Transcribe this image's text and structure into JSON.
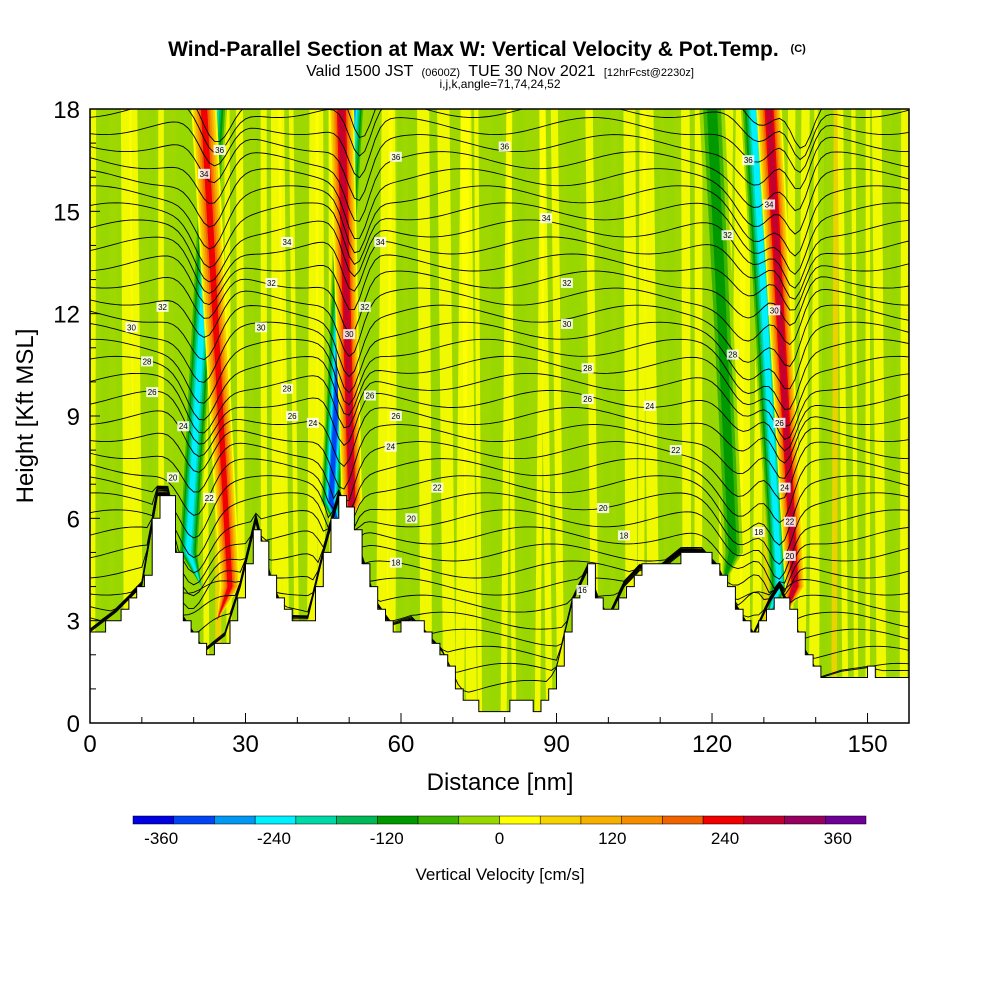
{
  "chart_data": {
    "type": "heatmap",
    "title": "Wind-Parallel Section at Max W: Vertical Velocity & Pot.Temp.",
    "title_suffix": "(C)",
    "subtitle": {
      "valid_prefix": "Valid 1500 JST",
      "utc": "(0600Z)",
      "date": "TUE 30 Nov 2021",
      "forecast": "[12hrFcst@2230z]"
    },
    "subtitle2": "i,j,k,angle=71,74,24,52",
    "xlabel": "Distance [nm]",
    "ylabel": "Height [Kft MSL]",
    "xlim": [
      0,
      158
    ],
    "ylim": [
      0,
      18
    ],
    "xticks": [
      "0",
      "30",
      "60",
      "90",
      "120",
      "150"
    ],
    "yticks": [
      "0",
      "3",
      "6",
      "9",
      "12",
      "15",
      "18"
    ],
    "colorbar": {
      "label": "Vertical Velocity [cm/s]",
      "range": [
        -390,
        390
      ],
      "tick_labels": [
        "-360",
        "-240",
        "-120",
        "0",
        "120",
        "240",
        "360"
      ],
      "tick_values": [
        -360,
        -240,
        -120,
        0,
        120,
        240,
        360
      ],
      "colors": [
        "#0000e0",
        "#0044f2",
        "#0098f2",
        "#00f0ff",
        "#00d8a8",
        "#00b858",
        "#009a00",
        "#3cb400",
        "#96d800",
        "#ffff00",
        "#f6d200",
        "#f8b000",
        "#f68c00",
        "#f06400",
        "#f00000",
        "#c00030",
        "#960060",
        "#6e0096"
      ]
    },
    "terrain_heights_kft": [
      [
        0,
        2.6
      ],
      [
        5,
        3.2
      ],
      [
        10,
        4
      ],
      [
        13,
        6.8
      ],
      [
        15,
        6.8
      ],
      [
        18,
        3
      ],
      [
        20,
        2.5
      ],
      [
        22,
        2
      ],
      [
        26,
        2.5
      ],
      [
        29,
        4
      ],
      [
        32,
        6
      ],
      [
        35,
        4
      ],
      [
        38,
        3
      ],
      [
        42,
        3
      ],
      [
        45,
        5
      ],
      [
        48,
        6.7
      ],
      [
        50,
        6
      ],
      [
        55,
        3.5
      ],
      [
        58,
        2.8
      ],
      [
        62,
        3
      ],
      [
        65,
        2.5
      ],
      [
        68,
        2
      ],
      [
        71,
        1
      ],
      [
        74,
        0.4
      ],
      [
        78,
        0.4
      ],
      [
        82,
        0.6
      ],
      [
        86,
        0.4
      ],
      [
        90,
        1.5
      ],
      [
        93,
        3.5
      ],
      [
        96,
        4.5
      ],
      [
        98,
        3.5
      ],
      [
        100,
        3
      ],
      [
        103,
        4
      ],
      [
        106,
        4.5
      ],
      [
        110,
        4.5
      ],
      [
        114,
        5
      ],
      [
        118,
        5
      ],
      [
        121,
        4.5
      ],
      [
        124,
        3.5
      ],
      [
        128,
        2.5
      ],
      [
        131,
        3.5
      ],
      [
        133,
        4
      ],
      [
        135,
        3.2
      ],
      [
        138,
        2
      ],
      [
        141,
        1.2
      ],
      [
        145,
        1.4
      ],
      [
        150,
        1.5
      ],
      [
        153,
        1.4
      ],
      [
        158,
        1.4
      ]
    ],
    "updraft_bands": [
      {
        "x_top": 22,
        "x_bottom": 27,
        "y_top": 18,
        "y_bottom": 4,
        "max_w": 270
      },
      {
        "x_top": 48.5,
        "x_bottom": 50.5,
        "y_top": 18,
        "y_bottom": 6.5,
        "max_w": 300
      },
      {
        "x_top": 131,
        "x_bottom": 136,
        "y_top": 18,
        "y_bottom": 4,
        "max_w": 300
      }
    ],
    "downdraft_bands": [
      {
        "x_top": 24,
        "x_bottom": 19,
        "y_top": 18,
        "y_bottom": 5,
        "min_w": -270
      },
      {
        "x_top": 50.5,
        "x_bottom": 46.5,
        "y_top": 18,
        "y_bottom": 6.5,
        "min_w": -360
      },
      {
        "x_top": 120,
        "x_bottom": 124,
        "y_top": 18,
        "y_bottom": 5,
        "min_w": -120
      },
      {
        "x_top": 128,
        "x_bottom": 133,
        "y_top": 18,
        "y_bottom": 4,
        "min_w": -270
      }
    ],
    "contour_labels": [
      {
        "text": "36",
        "x": 25,
        "y": 16.8
      },
      {
        "text": "34",
        "x": 22,
        "y": 16.1
      },
      {
        "text": "34",
        "x": 38,
        "y": 14.1
      },
      {
        "text": "32",
        "x": 35,
        "y": 12.9
      },
      {
        "text": "30",
        "x": 33,
        "y": 11.6
      },
      {
        "text": "28",
        "x": 38,
        "y": 9.8
      },
      {
        "text": "26",
        "x": 39,
        "y": 9.0
      },
      {
        "text": "24",
        "x": 43,
        "y": 8.8
      },
      {
        "text": "32",
        "x": 14,
        "y": 12.2
      },
      {
        "text": "30",
        "x": 8,
        "y": 11.6
      },
      {
        "text": "28",
        "x": 11,
        "y": 10.6
      },
      {
        "text": "26",
        "x": 12,
        "y": 9.7
      },
      {
        "text": "24",
        "x": 18,
        "y": 8.7
      },
      {
        "text": "20",
        "x": 16,
        "y": 7.2
      },
      {
        "text": "22",
        "x": 23,
        "y": 6.6
      },
      {
        "text": "36",
        "x": 59,
        "y": 16.6
      },
      {
        "text": "34",
        "x": 56,
        "y": 14.1
      },
      {
        "text": "32",
        "x": 53,
        "y": 12.2
      },
      {
        "text": "30",
        "x": 50,
        "y": 11.4
      },
      {
        "text": "26",
        "x": 54,
        "y": 9.6
      },
      {
        "text": "26",
        "x": 59,
        "y": 9.0
      },
      {
        "text": "24",
        "x": 58,
        "y": 8.1
      },
      {
        "text": "22",
        "x": 67,
        "y": 6.9
      },
      {
        "text": "20",
        "x": 62,
        "y": 6.0
      },
      {
        "text": "18",
        "x": 59,
        "y": 4.7
      },
      {
        "text": "36",
        "x": 80,
        "y": 16.9
      },
      {
        "text": "34",
        "x": 88,
        "y": 14.8
      },
      {
        "text": "32",
        "x": 92,
        "y": 12.9
      },
      {
        "text": "30",
        "x": 92,
        "y": 11.7
      },
      {
        "text": "28",
        "x": 96,
        "y": 10.4
      },
      {
        "text": "26",
        "x": 96,
        "y": 9.5
      },
      {
        "text": "24",
        "x": 108,
        "y": 9.3
      },
      {
        "text": "22",
        "x": 113,
        "y": 8.0
      },
      {
        "text": "20",
        "x": 99,
        "y": 6.3
      },
      {
        "text": "18",
        "x": 103,
        "y": 5.5
      },
      {
        "text": "16",
        "x": 95,
        "y": 3.9
      },
      {
        "text": "36",
        "x": 127,
        "y": 16.5
      },
      {
        "text": "34",
        "x": 131,
        "y": 15.2
      },
      {
        "text": "32",
        "x": 123,
        "y": 14.3
      },
      {
        "text": "30",
        "x": 132,
        "y": 12.1
      },
      {
        "text": "28",
        "x": 124,
        "y": 10.8
      },
      {
        "text": "26",
        "x": 133,
        "y": 8.8
      },
      {
        "text": "24",
        "x": 134,
        "y": 6.9
      },
      {
        "text": "22",
        "x": 135,
        "y": 5.9
      },
      {
        "text": "20",
        "x": 135,
        "y": 4.9
      },
      {
        "text": "18",
        "x": 129,
        "y": 5.6
      }
    ]
  }
}
